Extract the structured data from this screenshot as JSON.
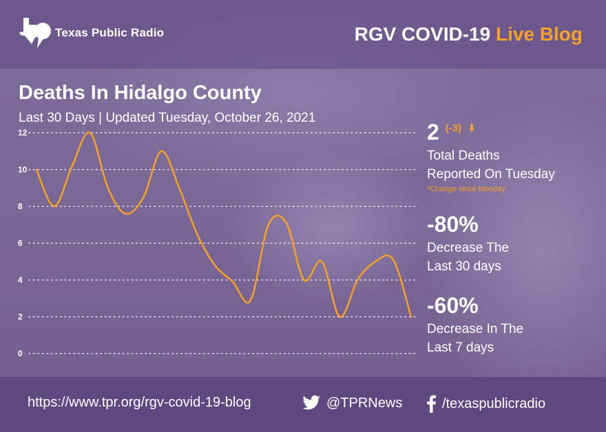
{
  "header": {
    "logo_text": "Texas Public Radio",
    "blog_title_main": "RGV COVID-19",
    "blog_title_accent": "Live Blog"
  },
  "chart_data": {
    "type": "line",
    "title": "Deaths In Hidalgo County",
    "subtitle": "Last 30 Days | Updated Tuesday, October 26, 2021",
    "xlabel": "",
    "ylabel": "",
    "ylim": [
      0,
      12
    ],
    "yticks": [
      "12",
      "10",
      "8",
      "6",
      "4",
      "2",
      "0"
    ],
    "grid": true,
    "series": [
      {
        "color": "#f7a224",
        "values": [
          10,
          8,
          10.2,
          12,
          9,
          7.6,
          8.5,
          11,
          9,
          6.5,
          4.8,
          3.9,
          2.9,
          7,
          7.1,
          4,
          5,
          2,
          4,
          5,
          5.1,
          2
        ]
      }
    ]
  },
  "stats": {
    "total_value": "2",
    "total_change": "(-3)",
    "total_label_line1": "Total Deaths",
    "total_label_line2": "Reported On Tuesday",
    "change_note": "*Change since Monday",
    "pct30_value": "-80%",
    "pct30_label_line1": "Decrease The",
    "pct30_label_line2": "Last 30 days",
    "pct7_value": "-60%",
    "pct7_label_line1": "Decrease In The",
    "pct7_label_line2": "Last 7 days"
  },
  "footer": {
    "url": "https://www.tpr.org/rgv-covid-19-blog",
    "twitter": "@TPRNews",
    "facebook": "/texaspublicradio"
  },
  "colors": {
    "accent": "#f7a224",
    "background": "#7a6897"
  },
  "icons": {
    "logo": "texas-map-speech-bubble-icon",
    "twitter": "twitter-bird-icon",
    "facebook": "facebook-f-icon",
    "down": "down-arrow-icon"
  }
}
